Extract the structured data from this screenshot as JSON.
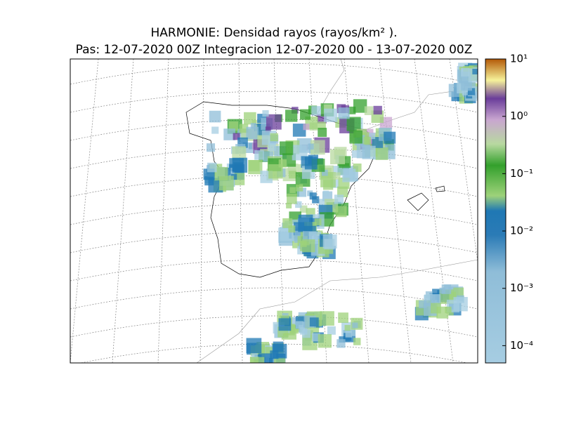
{
  "title": "HARMONIE: Densidad rayos  (rayos/km² ).",
  "subtitle": "Pas: 12-07-2020 00Z Integracion 12-07-2020 00 - 13-07-2020 00Z",
  "colorbar": {
    "log": true,
    "lim": [
      5e-05,
      10
    ],
    "ticks": [
      {
        "value": 0.0001,
        "label": "10⁻⁴"
      },
      {
        "value": 0.001,
        "label": "10⁻³"
      },
      {
        "value": 0.01,
        "label": "10⁻²"
      },
      {
        "value": 0.1,
        "label": "10⁻¹"
      },
      {
        "value": 1,
        "label": "10⁰"
      },
      {
        "value": 10,
        "label": "10¹"
      }
    ]
  }
}
